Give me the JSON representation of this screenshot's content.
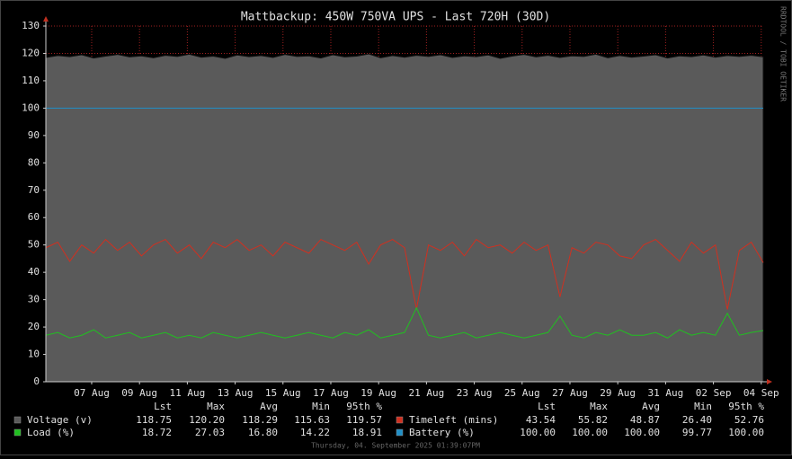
{
  "chart_data": {
    "type": "line",
    "title": "Mattbackup: 450W 750VA UPS - Last 720H (30D)",
    "side_label": "RRDTOOL / TOBI OETIKER",
    "footer": "Thursday, 04. September 2025 01:39:07PM",
    "xlim": [
      0,
      720
    ],
    "xticks": [
      {
        "value": 46,
        "label": "07 Aug"
      },
      {
        "value": 94,
        "label": "09 Aug"
      },
      {
        "value": 142,
        "label": "11 Aug"
      },
      {
        "value": 190,
        "label": "13 Aug"
      },
      {
        "value": 238,
        "label": "15 Aug"
      },
      {
        "value": 286,
        "label": "17 Aug"
      },
      {
        "value": 334,
        "label": "19 Aug"
      },
      {
        "value": 382,
        "label": "21 Aug"
      },
      {
        "value": 430,
        "label": "23 Aug"
      },
      {
        "value": 478,
        "label": "25 Aug"
      },
      {
        "value": 526,
        "label": "27 Aug"
      },
      {
        "value": 574,
        "label": "29 Aug"
      },
      {
        "value": 622,
        "label": "31 Aug"
      },
      {
        "value": 670,
        "label": "02 Sep"
      },
      {
        "value": 718,
        "label": "04 Sep"
      }
    ],
    "ylim": [
      0,
      130
    ],
    "yticks": [
      0,
      10,
      20,
      30,
      40,
      50,
      60,
      70,
      80,
      90,
      100,
      110,
      120,
      130
    ],
    "grid": true,
    "x": [
      0,
      12,
      24,
      36,
      48,
      60,
      72,
      84,
      96,
      108,
      120,
      132,
      144,
      156,
      168,
      180,
      192,
      204,
      216,
      228,
      240,
      252,
      264,
      276,
      288,
      300,
      312,
      324,
      336,
      348,
      360,
      372,
      384,
      396,
      408,
      420,
      432,
      444,
      456,
      468,
      480,
      492,
      504,
      516,
      528,
      540,
      552,
      564,
      576,
      588,
      600,
      612,
      624,
      636,
      648,
      660,
      672,
      684,
      696,
      708,
      720
    ],
    "legend_columns": [
      "Lst",
      "Max",
      "Avg",
      "Min",
      "95th %"
    ],
    "series": [
      {
        "name": "Voltage (v)",
        "color": "#5a5a5a",
        "style": "area",
        "stats": [
          "118.75",
          "120.20",
          "118.29",
          "115.63",
          "119.57"
        ],
        "values": [
          118.5,
          119.2,
          118.8,
          119.5,
          118.3,
          119.0,
          119.6,
          118.7,
          119.1,
          118.4,
          119.3,
          118.9,
          119.7,
          118.6,
          119.0,
          118.2,
          119.4,
          118.8,
          119.2,
          118.5,
          119.6,
          118.9,
          119.1,
          118.3,
          119.5,
          118.7,
          119.0,
          119.8,
          118.4,
          119.2,
          118.6,
          119.3,
          118.9,
          119.5,
          118.5,
          119.1,
          118.8,
          119.4,
          118.2,
          119.0,
          119.6,
          118.7,
          119.3,
          118.5,
          119.1,
          118.9,
          119.7,
          118.4,
          119.2,
          118.6,
          119.0,
          119.5,
          118.3,
          119.1,
          118.8,
          119.4,
          118.6,
          119.2,
          118.9,
          119.3,
          118.75
        ]
      },
      {
        "name": "Timeleft (mins)",
        "color": "#d03020",
        "style": "line",
        "stats": [
          "43.54",
          "55.82",
          "48.87",
          "26.40",
          "52.76"
        ],
        "values": [
          49,
          51,
          44,
          50,
          47,
          52,
          48,
          51,
          46,
          50,
          52,
          47,
          50,
          45,
          51,
          49,
          52,
          48,
          50,
          46,
          51,
          49,
          47,
          52,
          50,
          48,
          51,
          43,
          50,
          52,
          49,
          26.6,
          50,
          48,
          51,
          46,
          52,
          49,
          50,
          47,
          51,
          48,
          50,
          31,
          49,
          47,
          51,
          50,
          46,
          45,
          50,
          52,
          48,
          44,
          51,
          47,
          50,
          26.4,
          48,
          51,
          43.54
        ]
      },
      {
        "name": "Load (%)",
        "color": "#20c020",
        "style": "line",
        "stats": [
          "18.72",
          "27.03",
          "16.80",
          "14.22",
          "18.91"
        ],
        "values": [
          17,
          18,
          16,
          17,
          19,
          16,
          17,
          18,
          16,
          17,
          18,
          16,
          17,
          16,
          18,
          17,
          16,
          17,
          18,
          17,
          16,
          17,
          18,
          17,
          16,
          18,
          17,
          19,
          16,
          17,
          18,
          27.03,
          17,
          16,
          17,
          18,
          16,
          17,
          18,
          17,
          16,
          17,
          18,
          24,
          17,
          16,
          18,
          17,
          19,
          17,
          17,
          18,
          16,
          19,
          17,
          18,
          17,
          25,
          17,
          18,
          18.72
        ]
      },
      {
        "name": "Battery (%)",
        "color": "#2090c8",
        "style": "line",
        "stats": [
          "100.00",
          "100.00",
          "100.00",
          "99.77",
          "100.00"
        ],
        "values": [
          100,
          100,
          100,
          100,
          100,
          100,
          100,
          100,
          100,
          100,
          100,
          100,
          100,
          100,
          100,
          100,
          100,
          100,
          100,
          100,
          100,
          100,
          100,
          100,
          100,
          100,
          100,
          100,
          100,
          100,
          100,
          100,
          100,
          100,
          100,
          100,
          100,
          100,
          100,
          100,
          100,
          100,
          100,
          100,
          100,
          100,
          100,
          100,
          100,
          100,
          100,
          100,
          100,
          100,
          100,
          100,
          100,
          100,
          100,
          100,
          100
        ]
      }
    ]
  }
}
